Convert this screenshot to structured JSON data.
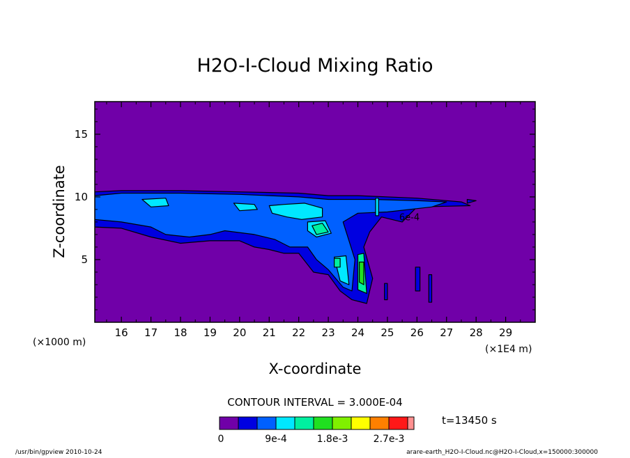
{
  "chart_data": {
    "type": "heatmap",
    "title": "H2O-I-Cloud Mixing Ratio",
    "xlabel": "X-coordinate",
    "ylabel": "Z-coordinate",
    "x_unit_left": "(×1000 m)",
    "x_unit_right": "(×1E4 m)",
    "xlim": [
      15.1,
      30.0
    ],
    "ylim": [
      0.0,
      17.6
    ],
    "x_ticks": [
      16,
      17,
      18,
      19,
      20,
      21,
      22,
      23,
      24,
      25,
      26,
      27,
      28,
      29
    ],
    "x_tick_labels": [
      "16",
      "17",
      "18",
      "19",
      "20",
      "21",
      "22",
      "23",
      "24",
      "25",
      "26",
      "27",
      "28",
      "29"
    ],
    "y_ticks": [
      5,
      10,
      15
    ],
    "y_tick_labels": [
      "5",
      "10",
      "15"
    ],
    "background_color": "#7000a8",
    "contour_label": "6e-4",
    "contour_label_pos": [
      25.4,
      8.4
    ],
    "level_colors": [
      "#7000a8",
      "#0000e0",
      "#0060ff",
      "#00e8ff",
      "#00f0a0",
      "#20e020",
      "#80f000",
      "#ffff00",
      "#ff8000",
      "#ff1818",
      "#ff9090"
    ],
    "regions": [
      {
        "level": 1,
        "points": [
          [
            15.1,
            10.4
          ],
          [
            16.0,
            10.5
          ],
          [
            18.0,
            10.5
          ],
          [
            20.0,
            10.4
          ],
          [
            22.0,
            10.3
          ],
          [
            23.0,
            10.1
          ],
          [
            24.0,
            10.1
          ],
          [
            26.0,
            9.9
          ],
          [
            27.5,
            9.6
          ],
          [
            27.8,
            9.3
          ],
          [
            26.0,
            9.2
          ],
          [
            25.5,
            8.0
          ],
          [
            24.8,
            8.4
          ],
          [
            24.4,
            7.2
          ],
          [
            24.2,
            6.0
          ],
          [
            24.5,
            3.5
          ],
          [
            24.3,
            1.5
          ],
          [
            23.8,
            1.8
          ],
          [
            23.4,
            2.5
          ],
          [
            23.0,
            3.8
          ],
          [
            22.5,
            4.0
          ],
          [
            22.0,
            5.5
          ],
          [
            21.5,
            5.5
          ],
          [
            21.0,
            5.8
          ],
          [
            20.5,
            6.0
          ],
          [
            20.0,
            6.5
          ],
          [
            19.0,
            6.5
          ],
          [
            18.0,
            6.3
          ],
          [
            17.0,
            6.8
          ],
          [
            16.0,
            7.5
          ],
          [
            15.1,
            7.6
          ]
        ]
      },
      {
        "level": 2,
        "points": [
          [
            15.1,
            10.1
          ],
          [
            16.0,
            10.3
          ],
          [
            18.0,
            10.3
          ],
          [
            20.0,
            10.2
          ],
          [
            22.0,
            10.0
          ],
          [
            23.0,
            9.8
          ],
          [
            24.5,
            9.8
          ],
          [
            26.0,
            9.7
          ],
          [
            27.0,
            9.6
          ],
          [
            26.5,
            9.2
          ],
          [
            25.0,
            8.8
          ],
          [
            24.0,
            8.7
          ],
          [
            23.5,
            8.0
          ],
          [
            23.7,
            6.5
          ],
          [
            23.9,
            5.0
          ],
          [
            23.8,
            2.5
          ],
          [
            23.5,
            2.8
          ],
          [
            23.0,
            4.2
          ],
          [
            22.6,
            5.0
          ],
          [
            22.3,
            6.0
          ],
          [
            21.7,
            6.0
          ],
          [
            21.2,
            6.6
          ],
          [
            20.5,
            7.0
          ],
          [
            19.5,
            7.3
          ],
          [
            19.0,
            7.0
          ],
          [
            18.3,
            6.8
          ],
          [
            17.5,
            7.0
          ],
          [
            17.0,
            7.6
          ],
          [
            16.0,
            8.0
          ],
          [
            15.1,
            8.2
          ]
        ]
      },
      {
        "level": 3,
        "points": [
          [
            16.7,
            9.8
          ],
          [
            17.5,
            9.9
          ],
          [
            17.6,
            9.3
          ],
          [
            17.0,
            9.2
          ]
        ]
      },
      {
        "level": 3,
        "points": [
          [
            19.8,
            9.5
          ],
          [
            20.5,
            9.4
          ],
          [
            20.6,
            9.0
          ],
          [
            20.0,
            8.9
          ]
        ]
      },
      {
        "level": 3,
        "points": [
          [
            21.0,
            9.3
          ],
          [
            21.5,
            9.4
          ],
          [
            22.2,
            9.5
          ],
          [
            22.8,
            9.1
          ],
          [
            22.8,
            8.4
          ],
          [
            22.1,
            8.2
          ],
          [
            21.6,
            8.4
          ],
          [
            21.1,
            8.7
          ]
        ]
      },
      {
        "level": 3,
        "points": [
          [
            22.3,
            8.0
          ],
          [
            22.9,
            8.1
          ],
          [
            23.1,
            7.1
          ],
          [
            22.6,
            6.8
          ],
          [
            22.3,
            7.3
          ]
        ]
      },
      {
        "level": 3,
        "points": [
          [
            23.2,
            5.2
          ],
          [
            23.6,
            5.3
          ],
          [
            23.7,
            3.0
          ],
          [
            23.4,
            3.3
          ]
        ]
      },
      {
        "level": 3,
        "points": [
          [
            24.6,
            9.9
          ],
          [
            24.7,
            9.9
          ],
          [
            24.7,
            8.5
          ],
          [
            24.6,
            8.5
          ]
        ]
      },
      {
        "level": 4,
        "points": [
          [
            22.45,
            7.7
          ],
          [
            22.8,
            7.9
          ],
          [
            23.0,
            7.2
          ],
          [
            22.6,
            7.0
          ]
        ]
      },
      {
        "level": 4,
        "points": [
          [
            23.2,
            5.1
          ],
          [
            23.4,
            5.1
          ],
          [
            23.4,
            4.4
          ],
          [
            23.2,
            4.4
          ]
        ]
      },
      {
        "level": 4,
        "points": [
          [
            24.0,
            5.4
          ],
          [
            24.2,
            5.5
          ],
          [
            24.3,
            2.3
          ],
          [
            24.0,
            2.6
          ]
        ]
      },
      {
        "level": 5,
        "points": [
          [
            24.05,
            4.8
          ],
          [
            24.2,
            4.8
          ],
          [
            24.2,
            3.0
          ],
          [
            24.05,
            3.2
          ]
        ]
      },
      {
        "level": 1,
        "points": [
          [
            24.9,
            3.1
          ],
          [
            25.0,
            3.1
          ],
          [
            25.0,
            1.8
          ],
          [
            24.9,
            1.8
          ]
        ]
      },
      {
        "level": 1,
        "points": [
          [
            25.95,
            4.4
          ],
          [
            26.1,
            4.4
          ],
          [
            26.1,
            2.5
          ],
          [
            25.95,
            2.5
          ]
        ]
      },
      {
        "level": 1,
        "points": [
          [
            26.4,
            3.8
          ],
          [
            26.5,
            3.8
          ],
          [
            26.5,
            1.6
          ],
          [
            26.4,
            1.6
          ]
        ]
      },
      {
        "level": 1,
        "points": [
          [
            27.7,
            9.8
          ],
          [
            28.0,
            9.7
          ],
          [
            27.7,
            9.5
          ]
        ]
      }
    ]
  },
  "contour_interval": "CONTOUR INTERVAL = 3.000E-04",
  "time_label": "t=13450 s",
  "colorbar": {
    "labels": [
      "0",
      "9e-4",
      "1.8e-3",
      "2.7e-3"
    ],
    "label_boundaries": [
      0,
      3,
      6,
      9
    ]
  },
  "footer": {
    "left": "/usr/bin/gpview  2010-10-24",
    "right": "arare-earth_H2O-I-Cloud.nc@H2O-I-Cloud,x=150000:300000"
  }
}
